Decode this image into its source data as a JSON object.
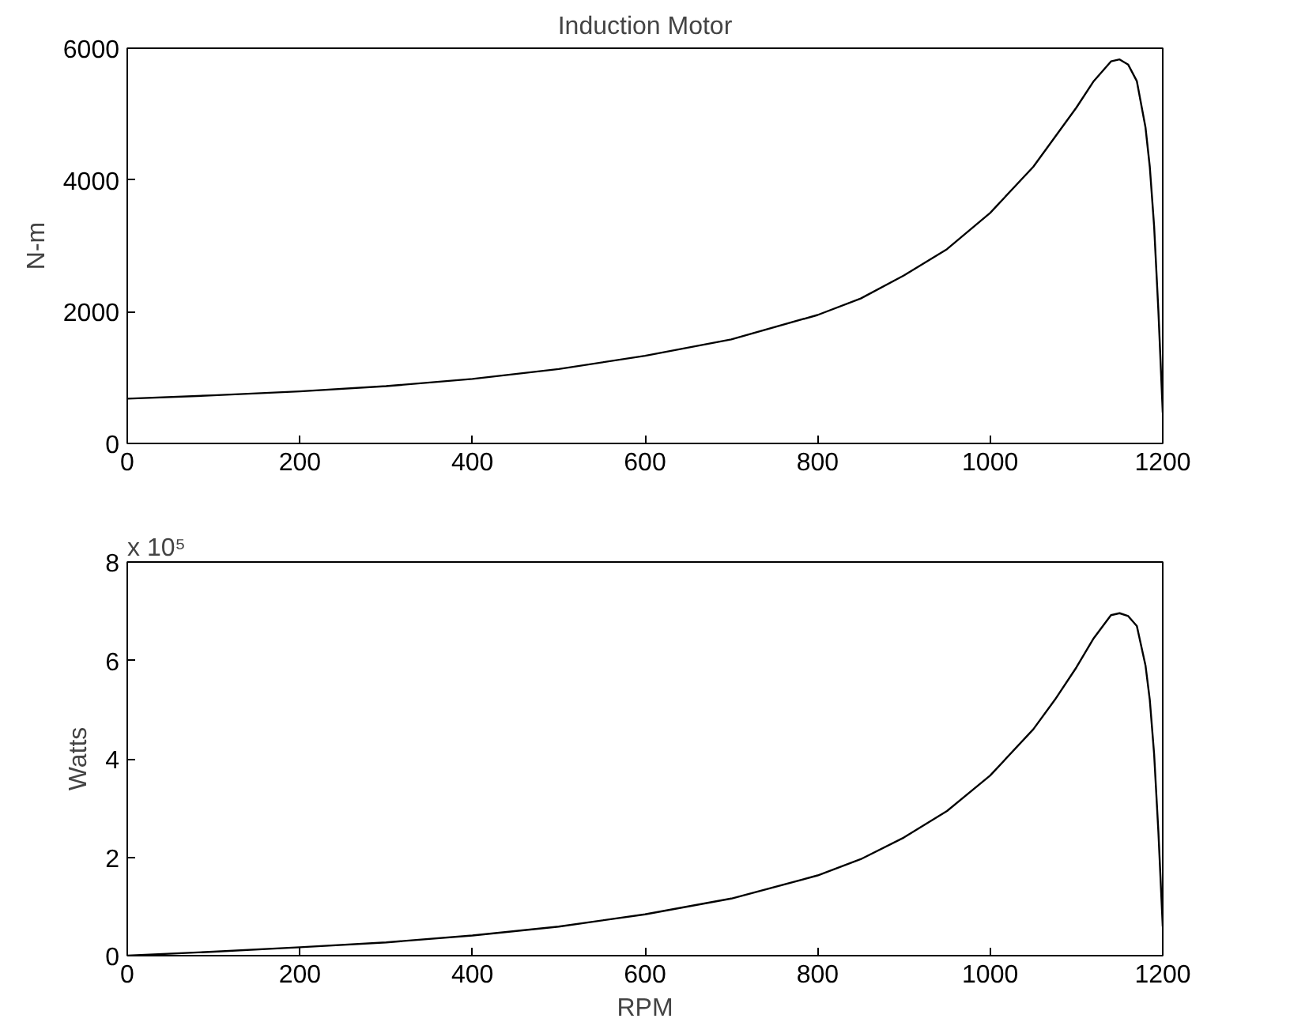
{
  "chart_data": [
    {
      "type": "line",
      "title": "Induction Motor",
      "ylabel": "N-m",
      "xlim": [
        0,
        1200
      ],
      "xticks": [
        0,
        200,
        400,
        600,
        800,
        1000,
        1200
      ],
      "ylim": [
        0,
        6000
      ],
      "yticks": [
        0,
        2000,
        4000,
        6000
      ],
      "grid": false,
      "x": [
        0,
        100,
        200,
        300,
        400,
        500,
        600,
        700,
        800,
        850,
        900,
        950,
        1000,
        1050,
        1075,
        1100,
        1120,
        1140,
        1150,
        1160,
        1170,
        1180,
        1185,
        1190,
        1195,
        1200
      ],
      "series": [
        {
          "color": "#000000",
          "values": [
            680,
            730,
            790,
            870,
            980,
            1130,
            1330,
            1580,
            1950,
            2200,
            2550,
            2950,
            3500,
            4200,
            4650,
            5100,
            5500,
            5800,
            5830,
            5750,
            5500,
            4800,
            4200,
            3300,
            2000,
            470
          ]
        }
      ]
    },
    {
      "type": "line",
      "xlabel": "RPM",
      "ylabel": "Watts",
      "annotations": [
        "x 10⁵"
      ],
      "xlim": [
        0,
        1200
      ],
      "xticks": [
        0,
        200,
        400,
        600,
        800,
        1000,
        1200
      ],
      "ylim": [
        0,
        8
      ],
      "yticks": [
        0,
        2,
        4,
        6,
        8
      ],
      "grid": false,
      "x": [
        0,
        100,
        200,
        300,
        400,
        500,
        600,
        700,
        800,
        850,
        900,
        950,
        1000,
        1050,
        1075,
        1100,
        1120,
        1140,
        1150,
        1160,
        1170,
        1180,
        1185,
        1190,
        1195,
        1200
      ],
      "series": [
        {
          "color": "#000000",
          "values": [
            0,
            0.08,
            0.17,
            0.27,
            0.41,
            0.59,
            0.84,
            1.16,
            1.63,
            1.96,
            2.4,
            2.94,
            3.66,
            4.6,
            5.2,
            5.86,
            6.45,
            6.92,
            6.96,
            6.9,
            6.7,
            5.9,
            5.2,
            4.1,
            2.5,
            0.59
          ]
        }
      ]
    }
  ]
}
